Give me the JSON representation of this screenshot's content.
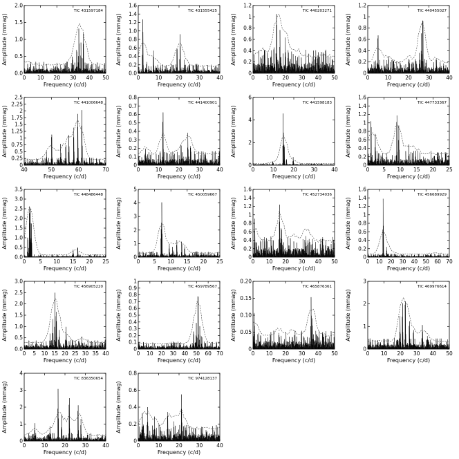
{
  "common": {
    "xlabel": "Frequency (c/d)",
    "ylabel": "Amplitude (mmag)"
  },
  "chart_data": [
    {
      "type": "line",
      "title": "TIC 431597184",
      "xlim": [
        0,
        50
      ],
      "ylim": [
        0,
        2.0
      ],
      "xticks": [
        "0",
        "10",
        "20",
        "30",
        "40",
        "50"
      ],
      "yticks": [
        "0.0",
        "0.5",
        "1.0",
        "1.5",
        "2.0"
      ],
      "noise": 0.25,
      "threshold": 0.05,
      "peaks": [
        [
          33.5,
          1.5
        ],
        [
          36.2,
          1.3
        ],
        [
          34.8,
          1.0
        ],
        [
          32.2,
          0.8
        ],
        [
          29.5,
          0.55
        ],
        [
          2.1,
          0.3
        ],
        [
          38.2,
          0.35
        ]
      ]
    },
    {
      "type": "line",
      "title": "TIC 431555425",
      "xlim": [
        0,
        40
      ],
      "ylim": [
        0,
        1.6
      ],
      "xticks": [
        "0",
        "10",
        "20",
        "30",
        "40"
      ],
      "yticks": [
        "0.0",
        "0.2",
        "0.4",
        "0.6",
        "0.8",
        "1.0",
        "1.2",
        "1.4",
        "1.6"
      ],
      "noise": 0.16,
      "threshold": 0.05,
      "peaks": [
        [
          2.2,
          1.5
        ],
        [
          20.5,
          1.0
        ],
        [
          19.0,
          0.7
        ],
        [
          7.5,
          0.6
        ],
        [
          4.1,
          0.3
        ],
        [
          22.6,
          0.35
        ]
      ]
    },
    {
      "type": "line",
      "title": "TIC 440203271",
      "xlim": [
        0,
        50
      ],
      "ylim": [
        0,
        1.2
      ],
      "xticks": [
        "0",
        "10",
        "20",
        "30",
        "40",
        "50"
      ],
      "yticks": [
        "0",
        "0.2",
        "0.4",
        "0.6",
        "0.8",
        "1",
        "1.2"
      ],
      "noise": 0.3,
      "threshold": 0.06,
      "peaks": [
        [
          14.5,
          1.18
        ],
        [
          16.5,
          0.8
        ],
        [
          19.8,
          0.65
        ],
        [
          12.8,
          0.55
        ],
        [
          21.5,
          0.45
        ],
        [
          5.5,
          0.35
        ],
        [
          27.3,
          0.3
        ]
      ]
    },
    {
      "type": "line",
      "title": "TIC 440455027",
      "xlim": [
        0,
        40
      ],
      "ylim": [
        0,
        1.2
      ],
      "xticks": [
        "0",
        "10",
        "20",
        "30",
        "40"
      ],
      "yticks": [
        "0",
        "0.2",
        "0.4",
        "0.6",
        "0.8",
        "1",
        "1.2"
      ],
      "noise": 0.18,
      "threshold": 0.05,
      "peaks": [
        [
          27.0,
          1.12
        ],
        [
          5.0,
          0.8
        ],
        [
          26.3,
          0.75
        ],
        [
          25.4,
          0.4
        ],
        [
          10.2,
          0.35
        ],
        [
          20.1,
          0.3
        ],
        [
          33.7,
          0.25
        ]
      ]
    },
    {
      "type": "line",
      "title": "TIC 441006648",
      "xlim": [
        40,
        70
      ],
      "ylim": [
        0,
        2.5
      ],
      "xticks": [
        "40",
        "50",
        "60",
        "70"
      ],
      "yticks": [
        "0",
        "0.25",
        "0.5",
        "0.75",
        "1",
        "1.25",
        "1.5",
        "1.75",
        "2",
        "2.25",
        "2.5"
      ],
      "noise": 0.2,
      "threshold": 0.05,
      "peaks": [
        [
          61.2,
          2.3
        ],
        [
          59.7,
          2.1
        ],
        [
          58.2,
          1.6
        ],
        [
          50.1,
          1.35
        ],
        [
          56.4,
          1.2
        ],
        [
          55.3,
          0.9
        ],
        [
          53.4,
          0.8
        ],
        [
          48.2,
          0.55
        ]
      ]
    },
    {
      "type": "line",
      "title": "TIC 441400901",
      "xlim": [
        0,
        40
      ],
      "ylim": [
        0,
        0.8
      ],
      "xticks": [
        "0",
        "10",
        "20",
        "30",
        "40"
      ],
      "yticks": [
        "0",
        "0.1",
        "0.2",
        "0.3",
        "0.4",
        "0.5",
        "0.6",
        "0.7",
        "0.8"
      ],
      "noise": 0.12,
      "threshold": 0.04,
      "peaks": [
        [
          12.1,
          0.72
        ],
        [
          24.3,
          0.42
        ],
        [
          21.0,
          0.3
        ],
        [
          25.6,
          0.28
        ],
        [
          3.5,
          0.22
        ]
      ]
    },
    {
      "type": "line",
      "title": "TIC 441598183",
      "xlim": [
        0,
        40
      ],
      "ylim": [
        0,
        6
      ],
      "xticks": [
        "0",
        "10",
        "20",
        "30",
        "40"
      ],
      "yticks": [
        "0",
        "2",
        "4",
        "6"
      ],
      "noise": 0.12,
      "threshold": 0.05,
      "peaks": [
        [
          14.8,
          4.9
        ],
        [
          15.3,
          2.2
        ],
        [
          19.7,
          0.8
        ],
        [
          16.4,
          0.6
        ],
        [
          9.6,
          0.4
        ]
      ]
    },
    {
      "type": "line",
      "title": "TIC 447733367",
      "xlim": [
        0,
        25
      ],
      "ylim": [
        0,
        1.6
      ],
      "xticks": [
        "0",
        "5",
        "10",
        "15",
        "20",
        "25"
      ],
      "yticks": [
        "0",
        "0.2",
        "0.4",
        "0.6",
        "0.8",
        "1",
        "1.2",
        "1.4",
        "1.6"
      ],
      "noise": 0.25,
      "threshold": 0.08,
      "peaks": [
        [
          8.9,
          1.35
        ],
        [
          9.5,
          1.0
        ],
        [
          1.0,
          1.2
        ],
        [
          12.6,
          0.5
        ],
        [
          2.3,
          0.8
        ],
        [
          14.7,
          0.35
        ]
      ]
    },
    {
      "type": "line",
      "title": "TIC 448486448",
      "xlim": [
        0,
        25
      ],
      "ylim": [
        0,
        3.5
      ],
      "xticks": [
        "0",
        "5",
        "10",
        "15",
        "20",
        "25"
      ],
      "yticks": [
        "0.0",
        "0.5",
        "1.0",
        "1.5",
        "2.0",
        "2.5",
        "3.0",
        "3.5"
      ],
      "noise": 0.1,
      "threshold": 0.05,
      "peaks": [
        [
          1.6,
          3.05
        ],
        [
          1.9,
          2.7
        ],
        [
          2.2,
          1.8
        ],
        [
          16.4,
          0.6
        ],
        [
          15.0,
          0.4
        ],
        [
          1.1,
          1.2
        ]
      ]
    },
    {
      "type": "line",
      "title": "TIC 450059667",
      "xlim": [
        0,
        25
      ],
      "ylim": [
        0,
        5
      ],
      "xticks": [
        "0",
        "5",
        "10",
        "15",
        "20",
        "25"
      ],
      "yticks": [
        "0",
        "1",
        "2",
        "3",
        "4",
        "5"
      ],
      "noise": 0.3,
      "threshold": 0.06,
      "peaks": [
        [
          7.2,
          4.5
        ],
        [
          7.0,
          2.2
        ],
        [
          11.8,
          1.4
        ],
        [
          13.3,
          1.3
        ],
        [
          9.5,
          1.0
        ],
        [
          14.2,
          0.9
        ],
        [
          10.5,
          0.8
        ]
      ]
    },
    {
      "type": "line",
      "title": "TIC 452734036",
      "xlim": [
        0,
        50
      ],
      "ylim": [
        0,
        1.6
      ],
      "xticks": [
        "0",
        "10",
        "20",
        "30",
        "40",
        "50"
      ],
      "yticks": [
        "0",
        "0.2",
        "0.4",
        "0.6",
        "0.8",
        "1",
        "1.2",
        "1.4",
        "1.6"
      ],
      "noise": 0.35,
      "threshold": 0.1,
      "peaks": [
        [
          16.3,
          1.33
        ],
        [
          1.0,
          1.0
        ],
        [
          17.4,
          0.8
        ],
        [
          32.5,
          0.55
        ],
        [
          25.0,
          0.4
        ],
        [
          33.6,
          0.45
        ]
      ]
    },
    {
      "type": "line",
      "title": "TIC 456689929",
      "xlim": [
        0,
        70
      ],
      "ylim": [
        0,
        1.6
      ],
      "xticks": [
        "0",
        "10",
        "20",
        "30",
        "40",
        "50",
        "60",
        "70"
      ],
      "yticks": [
        "0",
        "0.2",
        "0.4",
        "0.6",
        "0.8",
        "1",
        "1.2",
        "1.4",
        "1.6"
      ],
      "noise": 0.06,
      "threshold": 0.03,
      "peaks": [
        [
          13.2,
          1.5
        ],
        [
          16.2,
          0.25
        ],
        [
          23.0,
          0.1
        ],
        [
          54.0,
          0.08
        ],
        [
          61.0,
          0.07
        ]
      ]
    },
    {
      "type": "line",
      "title": "TIC 456905220",
      "xlim": [
        0,
        40
      ],
      "ylim": [
        0,
        3.0
      ],
      "xticks": [
        "0",
        "5",
        "10",
        "15",
        "20",
        "25",
        "30",
        "35",
        "40"
      ],
      "yticks": [
        "0.0",
        "0.5",
        "1.0",
        "1.5",
        "2.0",
        "2.5",
        "3.0"
      ],
      "noise": 0.3,
      "threshold": 0.05,
      "peaks": [
        [
          15.1,
          2.6
        ],
        [
          15.8,
          1.9
        ],
        [
          14.0,
          1.45
        ],
        [
          20.5,
          1.1
        ],
        [
          17.2,
          0.9
        ],
        [
          28.3,
          0.6
        ],
        [
          12.6,
          0.7
        ]
      ]
    },
    {
      "type": "line",
      "title": "TIC 459789567",
      "xlim": [
        0,
        70
      ],
      "ylim": [
        0,
        1.0
      ],
      "xticks": [
        "0",
        "10",
        "20",
        "30",
        "40",
        "50",
        "60",
        "70"
      ],
      "yticks": [
        "0",
        "0.1",
        "0.2",
        "0.3",
        "0.4",
        "0.5",
        "0.6",
        "0.7",
        "0.8",
        "0.9",
        "1"
      ],
      "noise": 0.08,
      "threshold": 0.02,
      "peaks": [
        [
          51.3,
          0.96
        ],
        [
          49.8,
          0.42
        ],
        [
          52.8,
          0.35
        ],
        [
          47.5,
          0.3
        ],
        [
          54.5,
          0.22
        ]
      ]
    },
    {
      "type": "line",
      "title": "TIC 465876361",
      "xlim": [
        0,
        50
      ],
      "ylim": [
        0,
        0.2
      ],
      "xticks": [
        "0",
        "10",
        "20",
        "30",
        "40",
        "50"
      ],
      "yticks": [
        "0",
        "0.05",
        "0.10",
        "0.15",
        "0.20"
      ],
      "noise": 0.04,
      "threshold": 0.01,
      "peaks": [
        [
          35.6,
          0.17
        ],
        [
          36.4,
          0.1
        ],
        [
          0.8,
          0.12
        ],
        [
          15.8,
          0.05
        ],
        [
          24.0,
          0.04
        ]
      ]
    },
    {
      "type": "line",
      "title": "TIC 469976614",
      "xlim": [
        0,
        50
      ],
      "ylim": [
        0,
        3
      ],
      "xticks": [
        "0",
        "10",
        "20",
        "30",
        "40",
        "50"
      ],
      "yticks": [
        "0",
        "1",
        "2",
        "3"
      ],
      "noise": 0.35,
      "threshold": 0.06,
      "peaks": [
        [
          23.0,
          2.6
        ],
        [
          21.3,
          2.25
        ],
        [
          19.8,
          1.6
        ],
        [
          25.5,
          1.4
        ],
        [
          33.5,
          1.2
        ],
        [
          28.0,
          1.0
        ],
        [
          36.5,
          0.6
        ]
      ]
    },
    {
      "type": "line",
      "title": "TIC 836350654",
      "xlim": [
        0,
        40
      ],
      "ylim": [
        0,
        4
      ],
      "xticks": [
        "0",
        "10",
        "20",
        "30",
        "40"
      ],
      "yticks": [
        "0",
        "1",
        "2",
        "3",
        "4"
      ],
      "noise": 0.35,
      "threshold": 0.06,
      "peaks": [
        [
          16.6,
          3.4
        ],
        [
          22.1,
          2.9
        ],
        [
          26.4,
          2.5
        ],
        [
          18.3,
          1.6
        ],
        [
          27.8,
          1.4
        ],
        [
          5.2,
          1.1
        ],
        [
          12.6,
          0.9
        ]
      ]
    },
    {
      "type": "line",
      "title": "TIC 974128137",
      "xlim": [
        0,
        40
      ],
      "ylim": [
        0,
        0.8
      ],
      "xticks": [
        "0",
        "10",
        "20",
        "30",
        "40"
      ],
      "yticks": [
        "0",
        "0.2",
        "0.4",
        "0.6",
        "0.8"
      ],
      "noise": 0.14,
      "threshold": 0.04,
      "peaks": [
        [
          21.2,
          0.62
        ],
        [
          4.6,
          0.42
        ],
        [
          14.4,
          0.4
        ],
        [
          2.0,
          0.35
        ],
        [
          8.0,
          0.3
        ],
        [
          17.5,
          0.25
        ]
      ]
    }
  ]
}
